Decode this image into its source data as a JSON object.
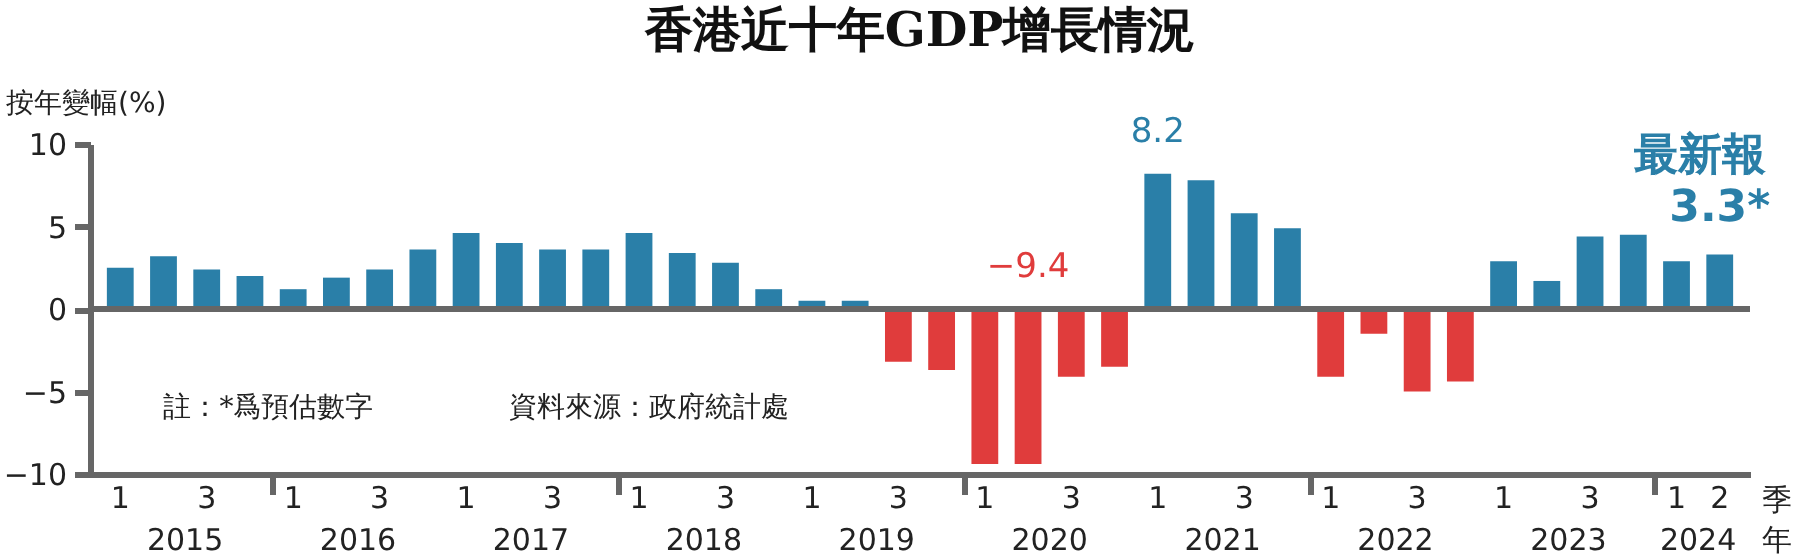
{
  "chart_data": {
    "type": "bar",
    "title": "香港近十年GDP增長情況",
    "ylabel": "按年變幅(%)",
    "xlabel": "季年",
    "categories": [
      "1",
      null,
      "3",
      null,
      "1",
      null,
      "3",
      null,
      "1",
      null,
      "3",
      null,
      "1",
      null,
      "3",
      null,
      "1",
      null,
      "3",
      null,
      "1",
      null,
      "3",
      null,
      "1",
      null,
      "3",
      null,
      "1",
      null,
      "3",
      null,
      "1",
      null,
      "3",
      null,
      "1",
      "2"
    ],
    "values": [
      2.5,
      3.2,
      2.4,
      2.0,
      1.2,
      1.9,
      2.4,
      3.6,
      4.6,
      4.0,
      3.6,
      3.6,
      4.6,
      3.4,
      2.8,
      1.2,
      0.5,
      0.5,
      -3.2,
      -3.7,
      -9.4,
      -9.4,
      -4.1,
      -3.5,
      8.2,
      7.8,
      5.8,
      4.9,
      -4.1,
      -1.5,
      -5.0,
      -4.4,
      2.9,
      1.7,
      4.4,
      4.5,
      2.9,
      3.3
    ],
    "colors": [
      "#2a7fa8",
      "#2a7fa8",
      "#2a7fa8",
      "#2a7fa8",
      "#2a7fa8",
      "#2a7fa8",
      "#2a7fa8",
      "#2a7fa8",
      "#2a7fa8",
      "#2a7fa8",
      "#2a7fa8",
      "#2a7fa8",
      "#2a7fa8",
      "#2a7fa8",
      "#2a7fa8",
      "#2a7fa8",
      "#2a7fa8",
      "#2a7fa8",
      "#e03c3c",
      "#e03c3c",
      "#e03c3c",
      "#e03c3c",
      "#e03c3c",
      "#e03c3c",
      "#2a7fa8",
      "#2a7fa8",
      "#2a7fa8",
      "#2a7fa8",
      "#e03c3c",
      "#e03c3c",
      "#e03c3c",
      "#e03c3c",
      "#2a7fa8",
      "#2a7fa8",
      "#2a7fa8",
      "#2a7fa8",
      "#2a7fa8",
      "#2a7fa8"
    ],
    "value_labels": [
      null,
      null,
      null,
      null,
      null,
      null,
      null,
      null,
      null,
      null,
      null,
      null,
      null,
      null,
      null,
      null,
      null,
      null,
      null,
      null,
      null,
      "−9.4",
      null,
      null,
      "8.2",
      null,
      null,
      null,
      null,
      null,
      null,
      null,
      null,
      null,
      null,
      null,
      null,
      "3.3*"
    ],
    "ylim": [
      -10,
      10
    ],
    "yticks": [
      10,
      5,
      0,
      {
        "value": -5,
        "label": "−5"
      },
      {
        "value": -10,
        "label": "−10"
      }
    ],
    "grid": false,
    "ref_lines": [
      {
        "axis": "y",
        "value": 0,
        "color": "#666666"
      }
    ],
    "annotations": [
      "2015",
      "2016",
      "2017",
      "2018",
      "2019",
      "2020",
      "2021",
      "2022",
      "2023",
      "2024",
      "最新報",
      "註：*爲預估數字",
      "資料來源：政府統計處"
    ]
  }
}
